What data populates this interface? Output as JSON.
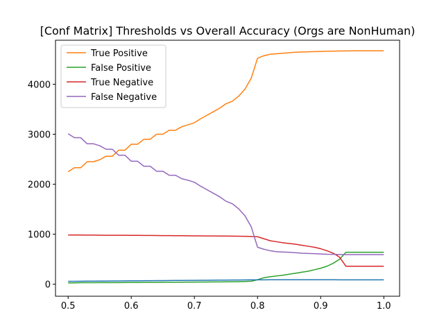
{
  "chart_data": {
    "type": "line",
    "title": "[Conf Matrix] Thresholds vs Overall Accuracy (Orgs are NonHuman)",
    "xlabel": "",
    "ylabel": "",
    "xlim": [
      0.48,
      1.025
    ],
    "ylim": [
      -240,
      4880
    ],
    "xticks": [
      0.5,
      0.6,
      0.7,
      0.8,
      0.9,
      1.0
    ],
    "xtick_labels": [
      "0.5",
      "0.6",
      "0.7",
      "0.8",
      "0.9",
      "1.0"
    ],
    "yticks": [
      0,
      1000,
      2000,
      3000,
      4000
    ],
    "ytick_labels": [
      "0",
      "1000",
      "2000",
      "3000",
      "4000"
    ],
    "grid": false,
    "legend_position": "top-left",
    "x": [
      0.5,
      0.51,
      0.52,
      0.53,
      0.54,
      0.55,
      0.56,
      0.57,
      0.58,
      0.59,
      0.6,
      0.61,
      0.62,
      0.63,
      0.64,
      0.65,
      0.66,
      0.67,
      0.68,
      0.69,
      0.7,
      0.71,
      0.72,
      0.73,
      0.74,
      0.75,
      0.76,
      0.77,
      0.78,
      0.79,
      0.8,
      0.81,
      0.82,
      0.83,
      0.84,
      0.85,
      0.86,
      0.87,
      0.88,
      0.89,
      0.9,
      0.91,
      0.92,
      0.93,
      0.94,
      0.95,
      0.96,
      0.97,
      0.98,
      0.99,
      1.0
    ],
    "series": [
      {
        "name": "True Positive",
        "color": "#ff7f0e",
        "values": [
          2250,
          2330,
          2330,
          2450,
          2450,
          2490,
          2560,
          2560,
          2680,
          2680,
          2800,
          2800,
          2900,
          2900,
          3000,
          3000,
          3080,
          3080,
          3150,
          3190,
          3230,
          3310,
          3380,
          3450,
          3520,
          3610,
          3660,
          3760,
          3900,
          4120,
          4520,
          4570,
          4600,
          4610,
          4620,
          4630,
          4640,
          4645,
          4650,
          4652,
          4655,
          4660,
          4662,
          4665,
          4667,
          4668,
          4668,
          4668,
          4668,
          4668,
          4668
        ]
      },
      {
        "name": "False Positive",
        "color": "#2ca02c",
        "values": [
          25,
          28,
          30,
          30,
          31,
          32,
          32,
          33,
          33,
          34,
          35,
          36,
          37,
          37,
          38,
          39,
          40,
          40,
          41,
          42,
          43,
          44,
          45,
          46,
          47,
          48,
          50,
          52,
          55,
          60,
          90,
          130,
          150,
          165,
          180,
          200,
          220,
          240,
          260,
          290,
          320,
          360,
          420,
          500,
          640,
          640,
          640,
          640,
          640,
          640,
          640
        ]
      },
      {
        "name": "True Negative",
        "color": "#d62728",
        "values": [
          985,
          985,
          984,
          982,
          982,
          981,
          980,
          980,
          979,
          979,
          978,
          977,
          976,
          975,
          974,
          973,
          972,
          971,
          970,
          969,
          968,
          967,
          966,
          965,
          964,
          963,
          962,
          960,
          958,
          955,
          950,
          910,
          870,
          850,
          830,
          815,
          800,
          780,
          760,
          740,
          710,
          670,
          620,
          540,
          360,
          360,
          360,
          360,
          360,
          360,
          360
        ]
      },
      {
        "name": "False Negative",
        "color": "#9467bd",
        "values": [
          3010,
          2930,
          2930,
          2810,
          2810,
          2770,
          2700,
          2700,
          2580,
          2580,
          2460,
          2460,
          2360,
          2360,
          2260,
          2260,
          2180,
          2180,
          2110,
          2080,
          2040,
          1960,
          1890,
          1820,
          1750,
          1660,
          1610,
          1510,
          1370,
          1150,
          740,
          700,
          670,
          650,
          645,
          640,
          630,
          620,
          615,
          612,
          605,
          600,
          598,
          595,
          593,
          592,
          592,
          592,
          592,
          592,
          592
        ]
      },
      {
        "color": "#1f77b4",
        "values": [
          58,
          59,
          60,
          61,
          62,
          63,
          64,
          65,
          66,
          67,
          68,
          69,
          70,
          71,
          72,
          73,
          74,
          75,
          76,
          77,
          78,
          79,
          80,
          81,
          82,
          83,
          84,
          85,
          86,
          87,
          88,
          88,
          89,
          89,
          90,
          90,
          90,
          90,
          90,
          90,
          90,
          89,
          89,
          88,
          87,
          87,
          87,
          87,
          87,
          87,
          87
        ]
      }
    ]
  }
}
